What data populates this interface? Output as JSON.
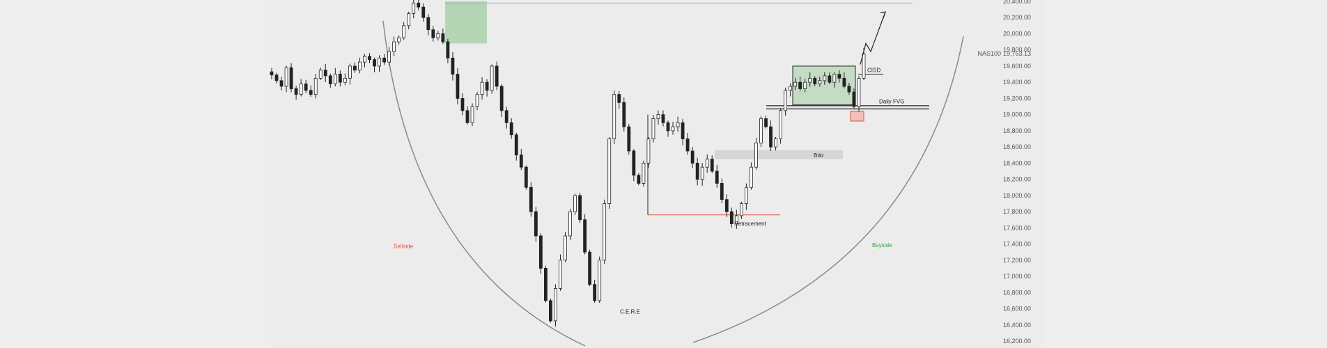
{
  "chart_data": {
    "type": "candlestick",
    "symbol": "NAS100",
    "current_price": 19753.13,
    "current_price_label": "19,753.13",
    "y_range": [
      16200,
      20400
    ],
    "y_ticks": [
      "20,400.00",
      "20,200.00",
      "20,000.00",
      "19,800.00",
      "19,600.00",
      "19,400.00",
      "19,200.00",
      "19,000.00",
      "18,800.00",
      "18,600.00",
      "18,400.00",
      "18,200.00",
      "18,000.00",
      "17,800.00",
      "17,600.00",
      "17,400.00",
      "17,200.00",
      "17,000.00",
      "16,800.00",
      "16,600.00",
      "16,400.00",
      "16,200.00"
    ],
    "y_tick_values": [
      20400,
      20200,
      20000,
      19800,
      19600,
      19400,
      19200,
      19000,
      18800,
      18600,
      18400,
      18200,
      18000,
      17800,
      17600,
      17400,
      17200,
      17000,
      16800,
      16600,
      16400,
      16200
    ],
    "grid": false,
    "key_prices": [
      19490,
      19420,
      19350,
      19580,
      19320,
      19250,
      19380,
      19300,
      19250,
      19450,
      19550,
      19480,
      19380,
      19500,
      19400,
      19450,
      19600,
      19550,
      19650,
      19720,
      19680,
      19600,
      19700,
      19650,
      19780,
      19900,
      19950,
      20100,
      20250,
      20380,
      20330,
      20200,
      20050,
      19950,
      20000,
      19900,
      19700,
      19500,
      19200,
      19050,
      18900,
      19100,
      19250,
      19400,
      19300,
      19600,
      19350,
      19050,
      18900,
      18750,
      18500,
      18350,
      18100,
      17800,
      17500,
      17100,
      16700,
      16450,
      16850,
      17200,
      17500,
      17800,
      18000,
      17700,
      17300,
      16900,
      16700,
      17200,
      17900,
      18700,
      19250,
      19150,
      18850,
      18550,
      18250,
      18150,
      18400,
      18700,
      18950,
      19000,
      18900,
      18800,
      18850,
      18900,
      18700,
      18550,
      18400,
      18200,
      18350,
      18450,
      18300,
      18150,
      17950,
      17800,
      17650,
      17750,
      17900,
      18100,
      18350,
      18650,
      18950,
      18850,
      18600,
      18700,
      19050,
      19300,
      19350,
      19400,
      19320,
      19400,
      19450,
      19380,
      19420,
      19480,
      19400,
      19500,
      19450,
      19350,
      19280,
      19100,
      19450,
      19753
    ],
    "zones": [
      {
        "type": "supply",
        "price_top": 20400,
        "price_bottom": 19880
      },
      {
        "type": "consolidation",
        "price_top": 19600,
        "price_bottom": 19120
      },
      {
        "type": "breaker",
        "label": "Brkr",
        "price_top": 18560,
        "price_bottom": 18450
      },
      {
        "type": "fvg",
        "price_top": 19040,
        "price_bottom": 18920
      }
    ],
    "levels": [
      {
        "label": "",
        "price": 20380
      },
      {
        "label": "Daily FVG",
        "price_a": 19110,
        "price_b": 19070
      },
      {
        "label": "",
        "price": 17760
      }
    ],
    "annotations": [
      "CISD",
      "Daily FVG",
      "Brkr",
      "Retracement",
      "C.E.R.E",
      "Sellside",
      "Buyside"
    ],
    "colors": {
      "background": "#ececec",
      "candle": "#222222",
      "supply_zone": "#7bbf7b",
      "red_level": "#e0533d",
      "blue_level": "#7fb2e5",
      "arc": "#7f8f8a",
      "sellside": "#e0533d",
      "buyside": "#3f9a3f"
    }
  }
}
